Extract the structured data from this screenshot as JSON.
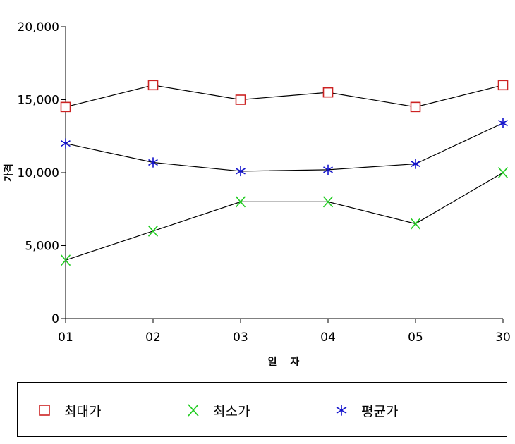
{
  "chart_data": {
    "type": "line",
    "categories": [
      "01",
      "02",
      "03",
      "04",
      "05",
      "30"
    ],
    "series": [
      {
        "name": "최대가",
        "values": [
          14500,
          16000,
          15000,
          15500,
          14500,
          16000
        ],
        "color": "#cc2222",
        "marker": "square"
      },
      {
        "name": "최소가",
        "values": [
          4000,
          6000,
          8000,
          8000,
          6500,
          10000
        ],
        "color": "#22cc22",
        "marker": "x"
      },
      {
        "name": "평균가",
        "values": [
          12000,
          10700,
          10100,
          10200,
          10600,
          13400
        ],
        "color": "#1111cc",
        "marker": "asterisk"
      }
    ],
    "title": "",
    "xlabel": "일 자",
    "ylabel": "가격",
    "ylim": [
      0,
      20000
    ],
    "yticks": [
      0,
      5000,
      10000,
      15000,
      20000
    ],
    "ytick_labels": [
      "0",
      "5,000",
      "10,000",
      "15,000",
      "20,000"
    ],
    "grid": false,
    "legend_position": "bottom",
    "line_color": "#000000"
  }
}
